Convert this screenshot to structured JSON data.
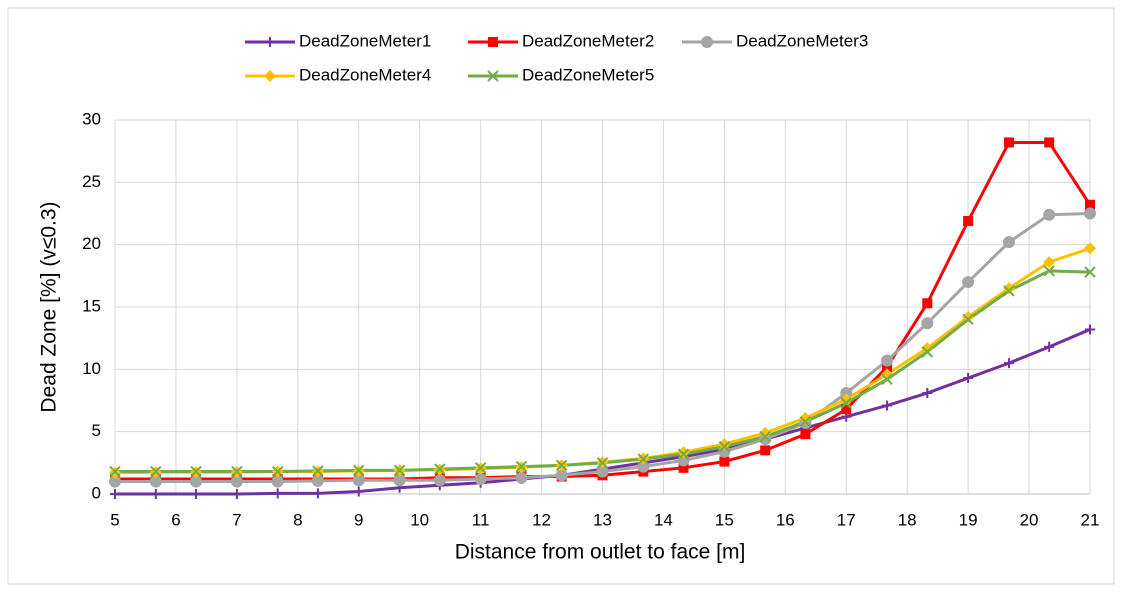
{
  "chart_data": {
    "type": "line",
    "xlabel": "Distance from outlet to face [m]",
    "ylabel": "Dead Zone [%]   (v≤0.3)",
    "x": [
      5,
      5.67,
      6.33,
      7,
      7.67,
      8.33,
      9,
      9.67,
      10.33,
      11,
      11.67,
      12.33,
      13,
      13.67,
      14.33,
      15,
      15.67,
      16.33,
      17,
      17.67,
      18.33,
      19,
      19.67,
      20.33,
      21
    ],
    "series": [
      {
        "name": "DeadZoneMeter1",
        "color": "#7030a0",
        "marker": "plus",
        "values": [
          0,
          0,
          0,
          0,
          0.05,
          0.05,
          0.2,
          0.5,
          0.7,
          0.9,
          1.2,
          1.5,
          2.0,
          2.5,
          3.0,
          3.6,
          4.4,
          5.3,
          6.2,
          7.1,
          8.1,
          9.3,
          10.5,
          11.8,
          13.2
        ]
      },
      {
        "name": "DeadZoneMeter2",
        "color": "#ff0000",
        "marker": "square",
        "values": [
          1.2,
          1.2,
          1.2,
          1.2,
          1.2,
          1.2,
          1.2,
          1.2,
          1.3,
          1.3,
          1.4,
          1.4,
          1.5,
          1.8,
          2.1,
          2.6,
          3.5,
          4.8,
          6.8,
          10.2,
          15.3,
          21.9,
          28.2,
          28.2,
          23.2
        ]
      },
      {
        "name": "DeadZoneMeter3",
        "color": "#a5a5a5",
        "marker": "circle",
        "values": [
          1.0,
          1.0,
          1.0,
          1.0,
          1.0,
          1.05,
          1.1,
          1.1,
          1.1,
          1.2,
          1.3,
          1.5,
          1.8,
          2.2,
          2.7,
          3.4,
          4.4,
          5.7,
          8.1,
          10.7,
          13.7,
          17.0,
          20.2,
          22.4,
          22.5
        ]
      },
      {
        "name": "DeadZoneMeter4",
        "color": "#ffc000",
        "marker": "diamond",
        "values": [
          1.7,
          1.75,
          1.75,
          1.75,
          1.8,
          1.8,
          1.85,
          1.9,
          1.95,
          2.05,
          2.15,
          2.3,
          2.55,
          2.85,
          3.35,
          4.0,
          4.9,
          6.1,
          7.6,
          9.6,
          11.7,
          14.2,
          16.5,
          18.6,
          19.7
        ]
      },
      {
        "name": "DeadZoneMeter5",
        "color": "#70ad47",
        "marker": "x",
        "values": [
          1.8,
          1.8,
          1.8,
          1.8,
          1.8,
          1.85,
          1.9,
          1.9,
          2.0,
          2.1,
          2.2,
          2.3,
          2.5,
          2.8,
          3.2,
          3.8,
          4.6,
          5.8,
          7.3,
          9.2,
          11.4,
          14.0,
          16.3,
          17.9,
          17.8
        ]
      }
    ],
    "xlim": [
      5,
      21
    ],
    "xticks": [
      5,
      6,
      7,
      8,
      9,
      10,
      11,
      12,
      13,
      14,
      15,
      16,
      17,
      18,
      19,
      20,
      21
    ],
    "ylim": [
      0,
      30
    ],
    "yticks": [
      0,
      5,
      10,
      15,
      20,
      25,
      30
    ],
    "grid": true,
    "legend": "top"
  }
}
